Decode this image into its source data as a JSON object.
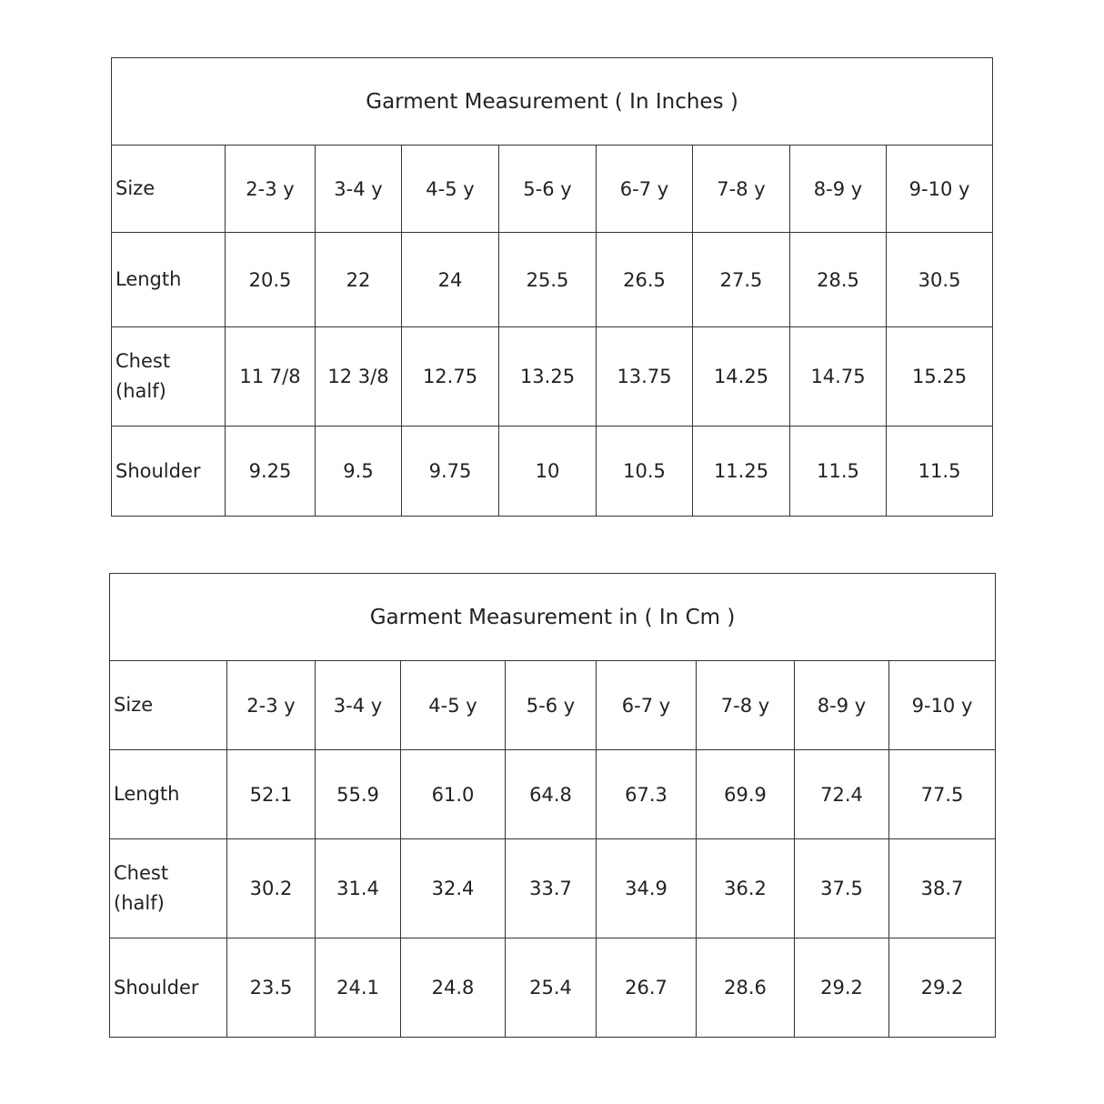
{
  "tables": [
    {
      "title": "Garment Measurement ( In Inches )",
      "header": [
        "Size",
        "2-3 y",
        "3-4 y",
        "4-5 y",
        "5-6 y",
        "6-7 y",
        "7-8 y",
        "8-9 y",
        "9-10 y"
      ],
      "rows": [
        [
          "Length",
          "20.5",
          "22",
          "24",
          "25.5",
          "26.5",
          "27.5",
          "28.5",
          "30.5"
        ],
        [
          "Chest (half)",
          "11 7/8",
          "12 3/8",
          "12.75",
          "13.25",
          "13.75",
          "14.25",
          "14.75",
          "15.25"
        ],
        [
          "Shoulder",
          "9.25",
          "9.5",
          "9.75",
          "10",
          "10.5",
          "11.25",
          "11.5",
          "11.5"
        ]
      ]
    },
    {
      "title": "Garment Measurement in ( In Cm )",
      "header": [
        "Size",
        "2-3 y",
        "3-4 y",
        "4-5 y",
        "5-6 y",
        "6-7 y",
        "7-8 y",
        "8-9 y",
        "9-10 y"
      ],
      "rows": [
        [
          "Length",
          "52.1",
          "55.9",
          "61.0",
          "64.8",
          "67.3",
          "69.9",
          "72.4",
          "77.5"
        ],
        [
          "Chest (half)",
          "30.2",
          "31.4",
          "32.4",
          "33.7",
          "34.9",
          "36.2",
          "37.5",
          "38.7"
        ],
        [
          "Shoulder",
          "23.5",
          "24.1",
          "24.8",
          "25.4",
          "26.7",
          "28.6",
          "29.2",
          "29.2"
        ]
      ]
    }
  ]
}
